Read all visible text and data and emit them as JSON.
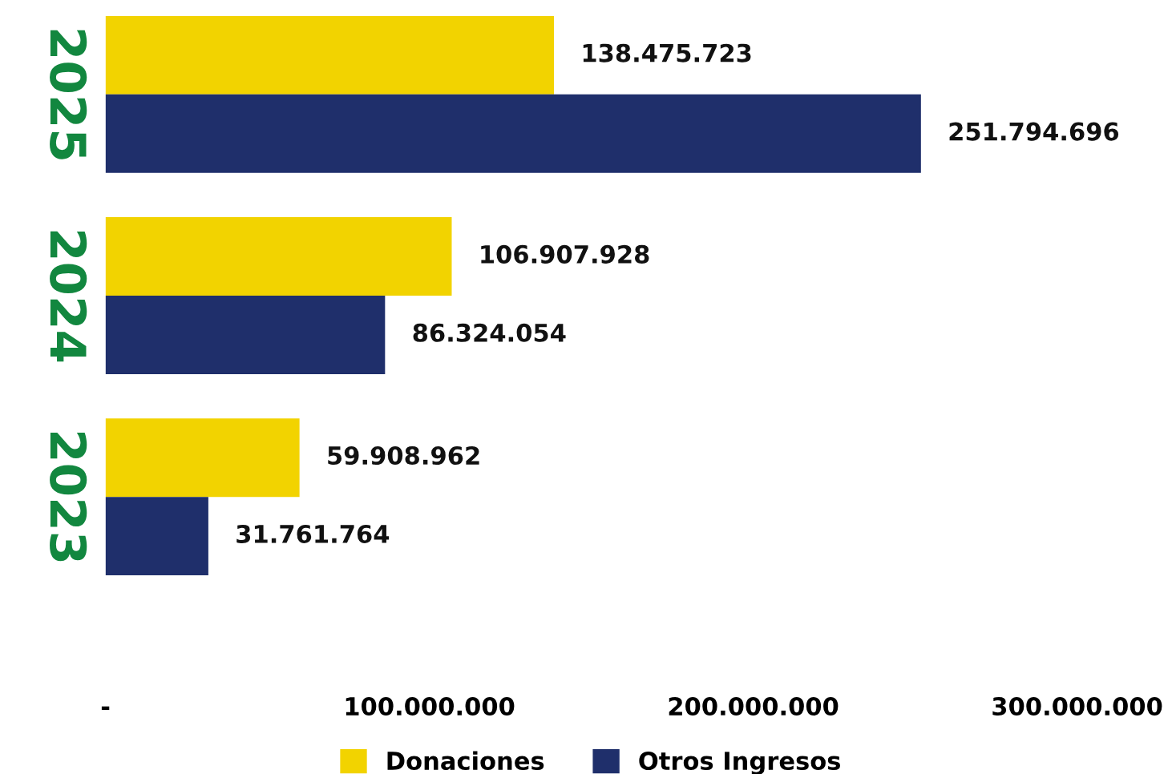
{
  "chart_data": {
    "type": "bar",
    "orientation": "horizontal",
    "categories": [
      "2025",
      "2024",
      "2023"
    ],
    "series": [
      {
        "name": "Donaciones",
        "color": "#f2d300",
        "values": [
          138475723,
          106907928,
          59908962
        ],
        "value_labels": [
          "138.475.723",
          "106.907.928",
          "59.908.962"
        ]
      },
      {
        "name": "Otros Ingresos",
        "color": "#1f2f6b",
        "values": [
          251794696,
          86324054,
          31761764
        ],
        "value_labels": [
          "251.794.696",
          "86.324.054",
          "31.761.764"
        ]
      }
    ],
    "xlim": [
      0,
      300000000
    ],
    "xticks": [
      {
        "value": 0,
        "label": "-"
      },
      {
        "value": 100000000,
        "label": "100.000.000"
      },
      {
        "value": 200000000,
        "label": "200.000.000"
      },
      {
        "value": 300000000,
        "label": "300.000.000"
      }
    ],
    "legend": "bottom",
    "grid": false
  }
}
